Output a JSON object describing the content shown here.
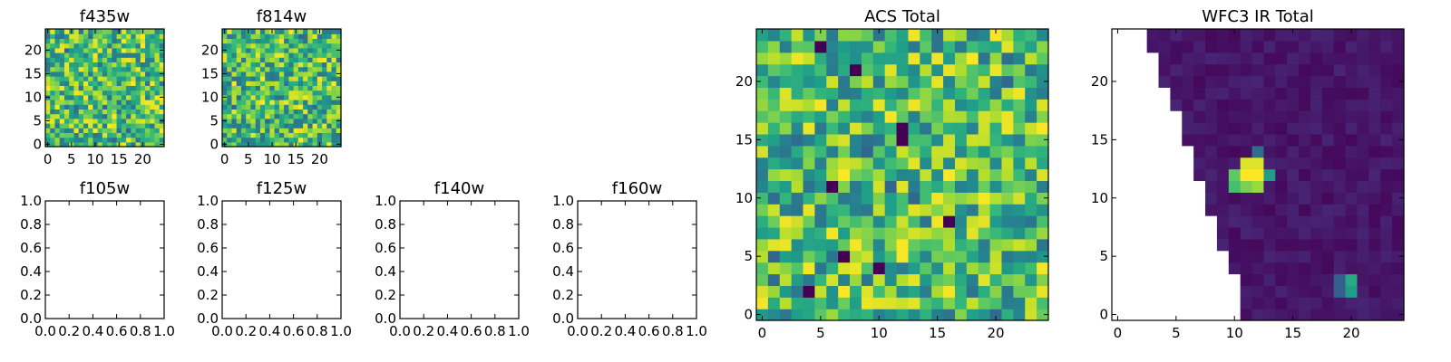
{
  "chart_data": [
    {
      "type": "heatmap",
      "title": "f435w",
      "image": "filled",
      "xticks": [
        "0",
        "5",
        "10",
        "15",
        "20"
      ],
      "yticks": [
        "0",
        "5",
        "10",
        "15",
        "20"
      ],
      "xlim": [
        -0.5,
        24.5
      ],
      "ylim": [
        -0.5,
        24.5
      ],
      "colormap": "viridis",
      "seed": 11,
      "grid": false
    },
    {
      "type": "heatmap",
      "title": "f814w",
      "image": "filled",
      "xticks": [
        "0",
        "5",
        "10",
        "15",
        "20"
      ],
      "yticks": [
        "0",
        "5",
        "10",
        "15",
        "20"
      ],
      "xlim": [
        -0.5,
        24.5
      ],
      "ylim": [
        -0.5,
        24.5
      ],
      "colormap": "viridis",
      "seed": 23,
      "grid": false
    },
    {
      "type": "empty",
      "title": "f105w",
      "image": "empty",
      "xticks": [
        "0.0",
        "0.2",
        "0.4",
        "0.6",
        "0.8",
        "1.0"
      ],
      "yticks": [
        "0.0",
        "0.2",
        "0.4",
        "0.6",
        "0.8",
        "1.0"
      ],
      "xlim": [
        0,
        1
      ],
      "ylim": [
        0,
        1
      ]
    },
    {
      "type": "empty",
      "title": "f125w",
      "image": "empty",
      "xticks": [
        "0.0",
        "0.2",
        "0.4",
        "0.6",
        "0.8",
        "1.0"
      ],
      "yticks": [
        "0.0",
        "0.2",
        "0.4",
        "0.6",
        "0.8",
        "1.0"
      ],
      "xlim": [
        0,
        1
      ],
      "ylim": [
        0,
        1
      ]
    },
    {
      "type": "empty",
      "title": "f140w",
      "image": "empty",
      "xticks": [
        "0.0",
        "0.2",
        "0.4",
        "0.6",
        "0.8",
        "1.0"
      ],
      "yticks": [
        "0.0",
        "0.2",
        "0.4",
        "0.6",
        "0.8",
        "1.0"
      ],
      "xlim": [
        0,
        1
      ],
      "ylim": [
        0,
        1
      ]
    },
    {
      "type": "empty",
      "title": "f160w",
      "image": "empty",
      "xticks": [
        "0.0",
        "0.2",
        "0.4",
        "0.6",
        "0.8",
        "1.0"
      ],
      "yticks": [
        "0.0",
        "0.2",
        "0.4",
        "0.6",
        "0.8",
        "1.0"
      ],
      "xlim": [
        0,
        1
      ],
      "ylim": [
        0,
        1
      ]
    },
    {
      "type": "heatmap",
      "title": "ACS Total",
      "image": "filled",
      "xticks": [
        "0",
        "5",
        "10",
        "15",
        "20"
      ],
      "yticks": [
        "0",
        "5",
        "10",
        "15",
        "20"
      ],
      "xlim": [
        -0.5,
        24.5
      ],
      "ylim": [
        -0.5,
        24.5
      ],
      "colormap": "viridis",
      "seed": 37,
      "grid": false,
      "dark_pixels": [
        [
          5,
          23
        ],
        [
          12,
          16
        ],
        [
          12,
          15
        ],
        [
          8,
          21
        ],
        [
          6,
          11
        ],
        [
          16,
          8
        ],
        [
          7,
          5
        ],
        [
          10,
          4
        ],
        [
          4,
          2
        ]
      ]
    },
    {
      "type": "heatmap",
      "title": "WFC3 IR Total",
      "image": "masked",
      "xticks": [
        "0",
        "5",
        "10",
        "15",
        "20"
      ],
      "yticks": [
        "0",
        "5",
        "10",
        "15",
        "20"
      ],
      "xlim": [
        -0.5,
        24.5
      ],
      "ylim": [
        -0.5,
        24.5
      ],
      "colormap": "viridis",
      "seed": 51,
      "grid": false,
      "masked_region": "white triangle at upper-left (no data)",
      "bright_sources": [
        {
          "x": 11,
          "y": 12,
          "value": 1.0
        },
        {
          "x": 12,
          "y": 12,
          "value": 1.0
        },
        {
          "x": 11,
          "y": 13,
          "value": 0.95
        },
        {
          "x": 12,
          "y": 13,
          "value": 0.95
        },
        {
          "x": 10,
          "y": 12,
          "value": 0.75
        },
        {
          "x": 13,
          "y": 12,
          "value": 0.55
        },
        {
          "x": 12,
          "y": 14,
          "value": 0.35
        },
        {
          "x": 11,
          "y": 11,
          "value": 0.8
        },
        {
          "x": 10,
          "y": 11,
          "value": 0.7
        },
        {
          "x": 12,
          "y": 11,
          "value": 0.85
        },
        {
          "x": 20,
          "y": 3,
          "value": 0.6
        },
        {
          "x": 20,
          "y": 2,
          "value": 0.55
        },
        {
          "x": 19,
          "y": 3,
          "value": 0.3
        },
        {
          "x": 19,
          "y": 2,
          "value": 0.3
        }
      ]
    }
  ]
}
